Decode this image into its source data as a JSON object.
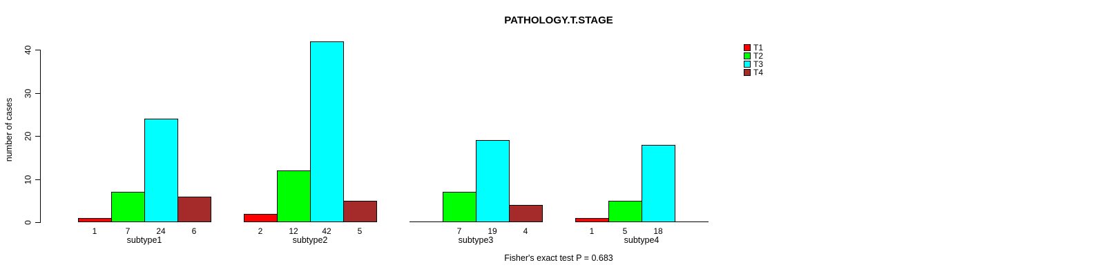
{
  "chart_data": {
    "type": "bar",
    "title": "PATHOLOGY.T.STAGE",
    "ylabel": "number of cases",
    "xlabel": "",
    "footer": "Fisher's exact test P = 0.683",
    "categories": [
      "subtype1",
      "subtype2",
      "subtype3",
      "subtype4"
    ],
    "series": [
      {
        "name": "T1",
        "color": "#FF0000",
        "values": [
          1,
          2,
          0,
          1
        ]
      },
      {
        "name": "T2",
        "color": "#00FF00",
        "values": [
          7,
          12,
          7,
          5
        ]
      },
      {
        "name": "T3",
        "color": "#00FFFF",
        "values": [
          24,
          42,
          19,
          18
        ]
      },
      {
        "name": "T4",
        "color": "#A52A2A",
        "values": [
          6,
          5,
          4,
          0
        ]
      }
    ],
    "bar_value_labels_shown": true,
    "hide_zero_labels": true,
    "yticks": [
      0,
      10,
      20,
      30,
      40
    ],
    "ylim": [
      0,
      42
    ],
    "grid": false,
    "legend_position": "top-right",
    "bar_border_color": "#000000",
    "axis_color": "#000000",
    "background_color": "#FFFFFF"
  }
}
